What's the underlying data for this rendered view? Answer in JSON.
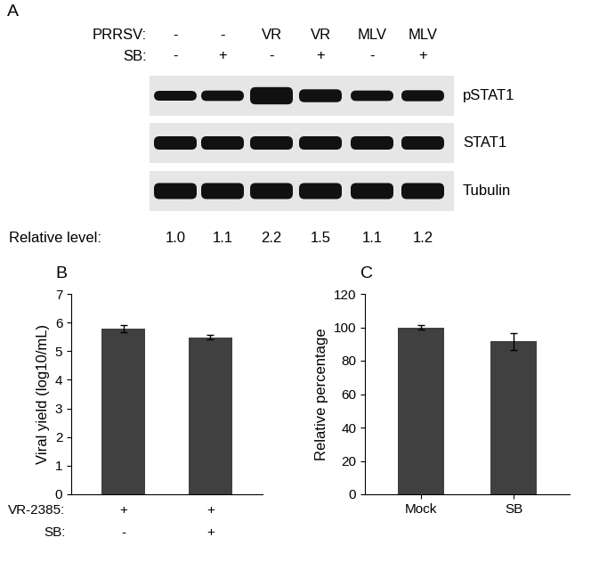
{
  "blot": {
    "panel_label": "A",
    "conditions": [
      {
        "label": "PRRSV:",
        "values": [
          "-",
          "-",
          "VR",
          "VR",
          "MLV",
          "MLV"
        ]
      },
      {
        "label": "SB:",
        "values": [
          "-",
          "+",
          "-",
          "+",
          "-",
          "+"
        ]
      }
    ],
    "bands": [
      "pSTAT1",
      "STAT1",
      "Tubulin"
    ],
    "relative_level": {
      "label": "Relative level:",
      "values": [
        1.0,
        1.1,
        2.2,
        1.5,
        1.1,
        1.2
      ]
    }
  },
  "chart_data": [
    {
      "panel_label": "B",
      "type": "bar",
      "categories": [
        null,
        null
      ],
      "values": [
        5.78,
        5.48
      ],
      "errors": [
        0.13,
        0.08
      ],
      "color": "#404040",
      "y_label": "Viral yield (log10/mL)",
      "ylim": [
        0,
        7
      ],
      "yticks": [
        0,
        1,
        2,
        3,
        4,
        5,
        6,
        7
      ],
      "conditions": [
        {
          "label": "VR-2385:",
          "values": [
            "+",
            "+"
          ]
        },
        {
          "label": "SB:",
          "values": [
            "-",
            "+"
          ]
        }
      ]
    },
    {
      "panel_label": "C",
      "type": "bar",
      "categories": [
        "Mock",
        "SB"
      ],
      "values": [
        100,
        91.5
      ],
      "errors": [
        1.2,
        5
      ],
      "color": "#404040",
      "y_label": "Relative percentage",
      "ylim": [
        0,
        120
      ],
      "yticks": [
        0,
        20,
        40,
        60,
        80,
        100,
        120
      ]
    }
  ]
}
